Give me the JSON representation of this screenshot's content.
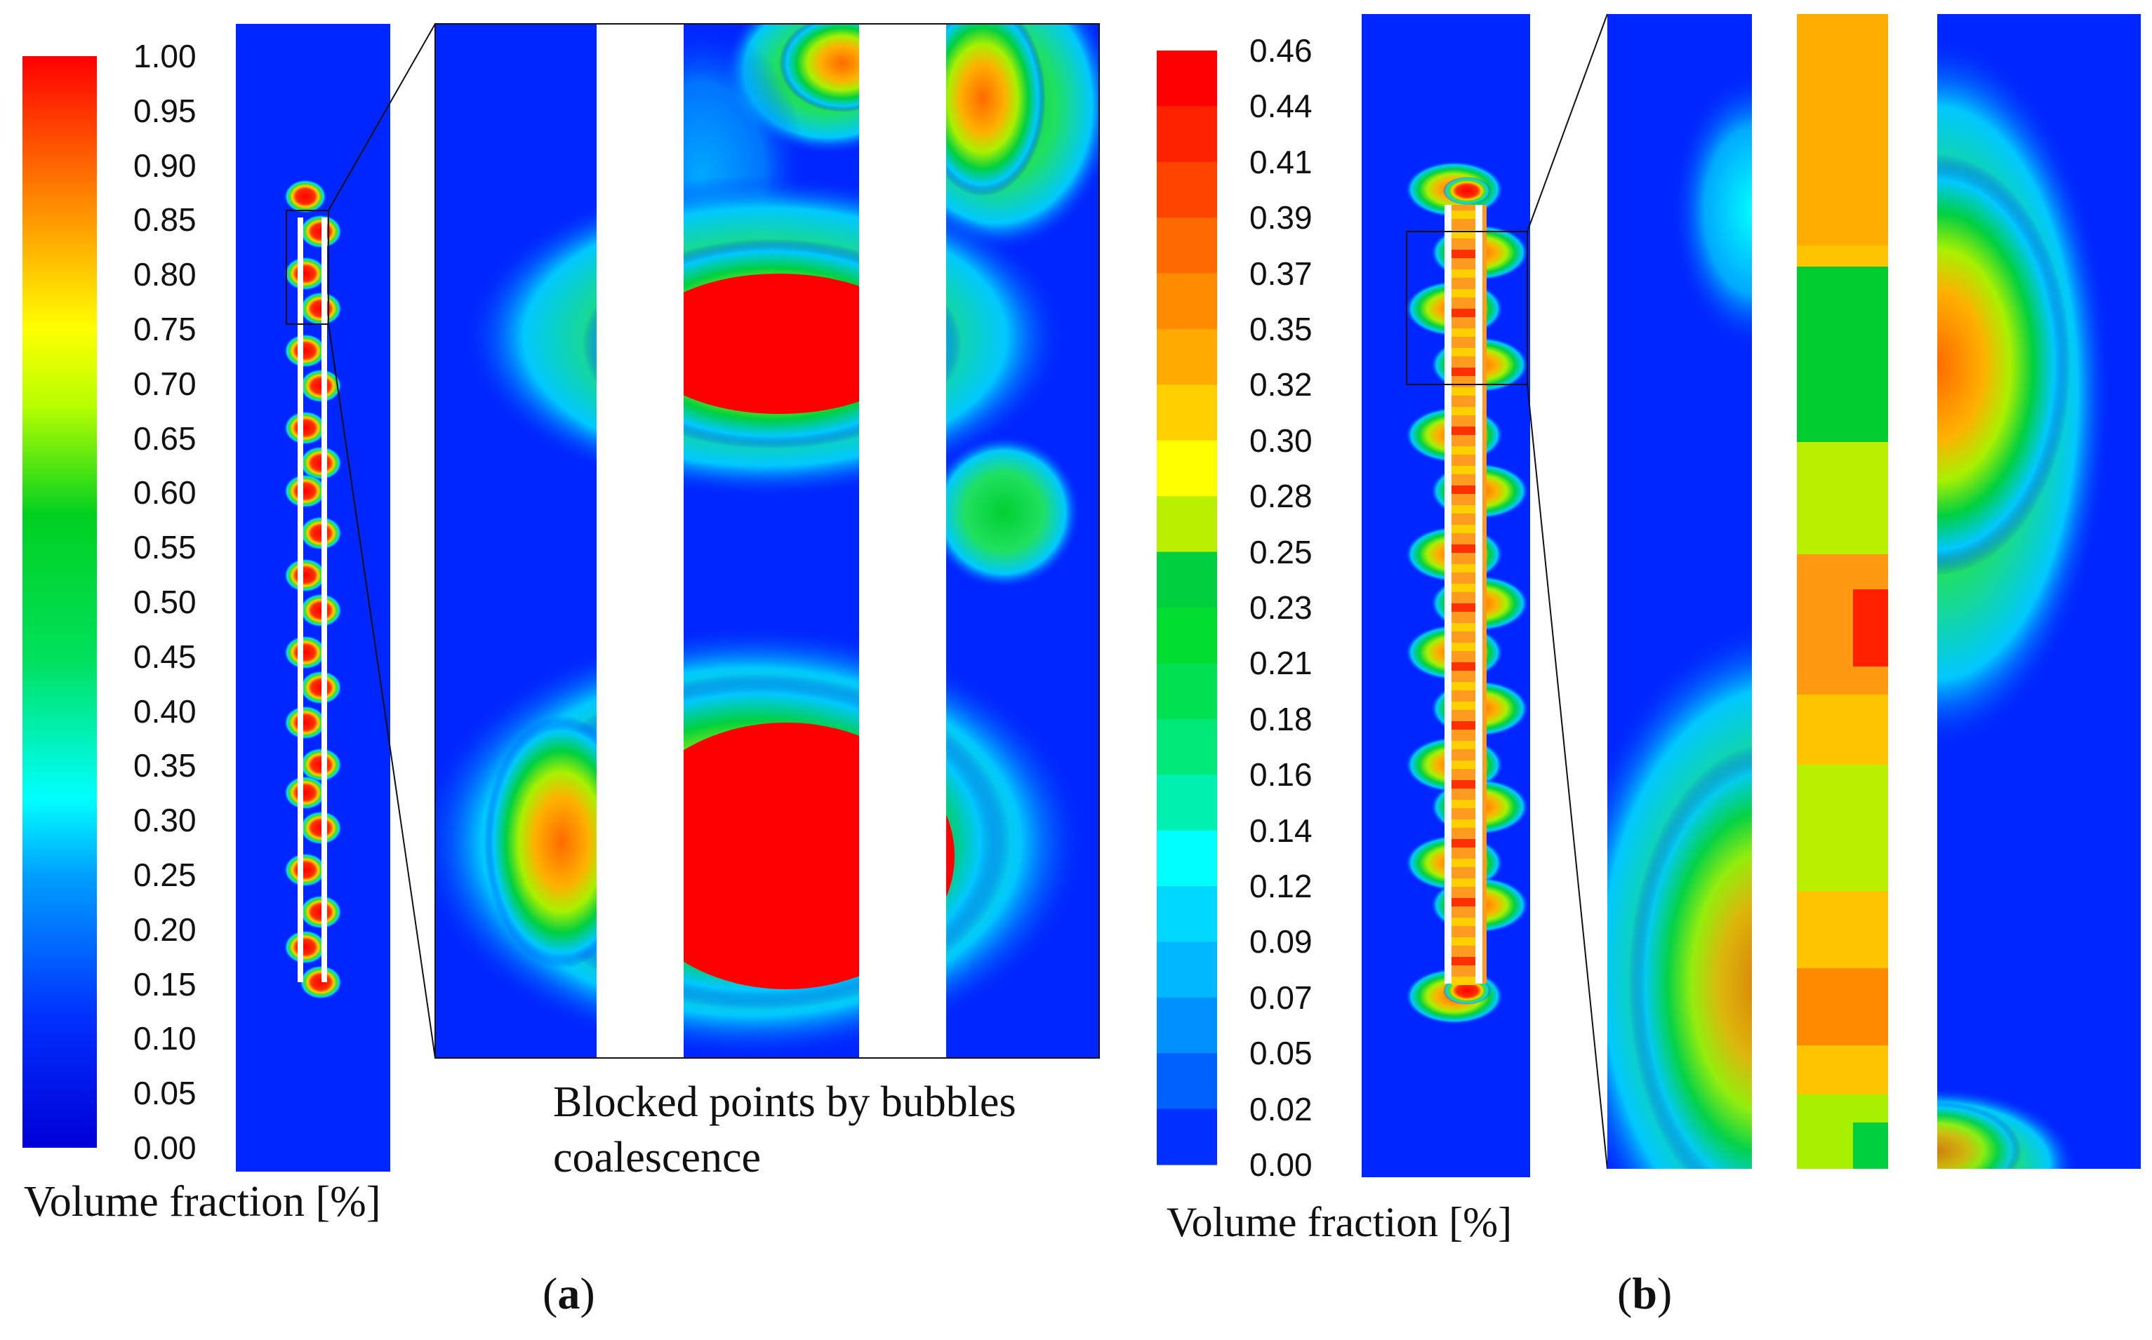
{
  "panel_a": {
    "label_open": "(",
    "label_letter": "a",
    "label_close": ")",
    "colorbar": {
      "ticks": [
        "1.00",
        "0.95",
        "0.90",
        "0.85",
        "0.80",
        "0.75",
        "0.70",
        "0.65",
        "0.60",
        "0.55",
        "0.50",
        "0.45",
        "0.40",
        "0.35",
        "0.30",
        "0.25",
        "0.20",
        "0.15",
        "0.10",
        "0.05",
        "0.00"
      ],
      "title": "Volume fraction [%]",
      "style": "continuous jet"
    },
    "annotation_line1": "Blocked points by bubbles",
    "annotation_line2": "coalescence"
  },
  "panel_b": {
    "label_open": "(",
    "label_letter": "b",
    "label_close": ")",
    "colorbar": {
      "ticks": [
        "0.46",
        "0.44",
        "0.41",
        "0.39",
        "0.37",
        "0.35",
        "0.32",
        "0.30",
        "0.28",
        "0.25",
        "0.23",
        "0.21",
        "0.18",
        "0.16",
        "0.14",
        "0.12",
        "0.09",
        "0.07",
        "0.05",
        "0.02",
        "0.00"
      ],
      "title": "Volume fraction [%]",
      "style": "banded"
    }
  },
  "colors": {
    "background_field": "#0026ff",
    "high": "#ff0000",
    "mid": "#00e020",
    "low": "#00f0ff"
  }
}
